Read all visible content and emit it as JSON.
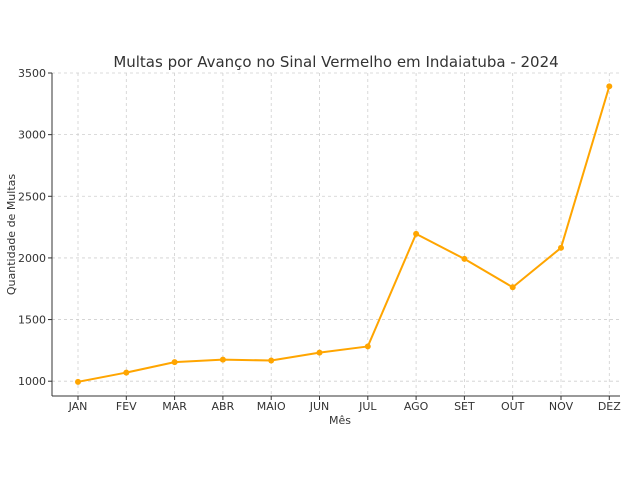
{
  "chart_data": {
    "type": "line",
    "title": "Multas por Avanço no Sinal Vermelho em Indaiatuba - 2024",
    "xlabel": "Mês",
    "ylabel": "Quantidade de Multas",
    "categories": [
      "JAN",
      "FEV",
      "MAR",
      "ABR",
      "MAIO",
      "JUN",
      "JUL",
      "AGO",
      "SET",
      "OUT",
      "NOV",
      "DEZ"
    ],
    "series": [
      {
        "values": [
          995,
          1070,
          1155,
          1175,
          1168,
          1232,
          1282,
          2195,
          1992,
          1762,
          2082,
          3392
        ],
        "color": "#FFA500"
      }
    ],
    "ylim": [
      880,
      3500
    ],
    "yticks": [
      1000,
      1500,
      2000,
      2500,
      3000,
      3500
    ],
    "grid": true,
    "legend": "none"
  }
}
